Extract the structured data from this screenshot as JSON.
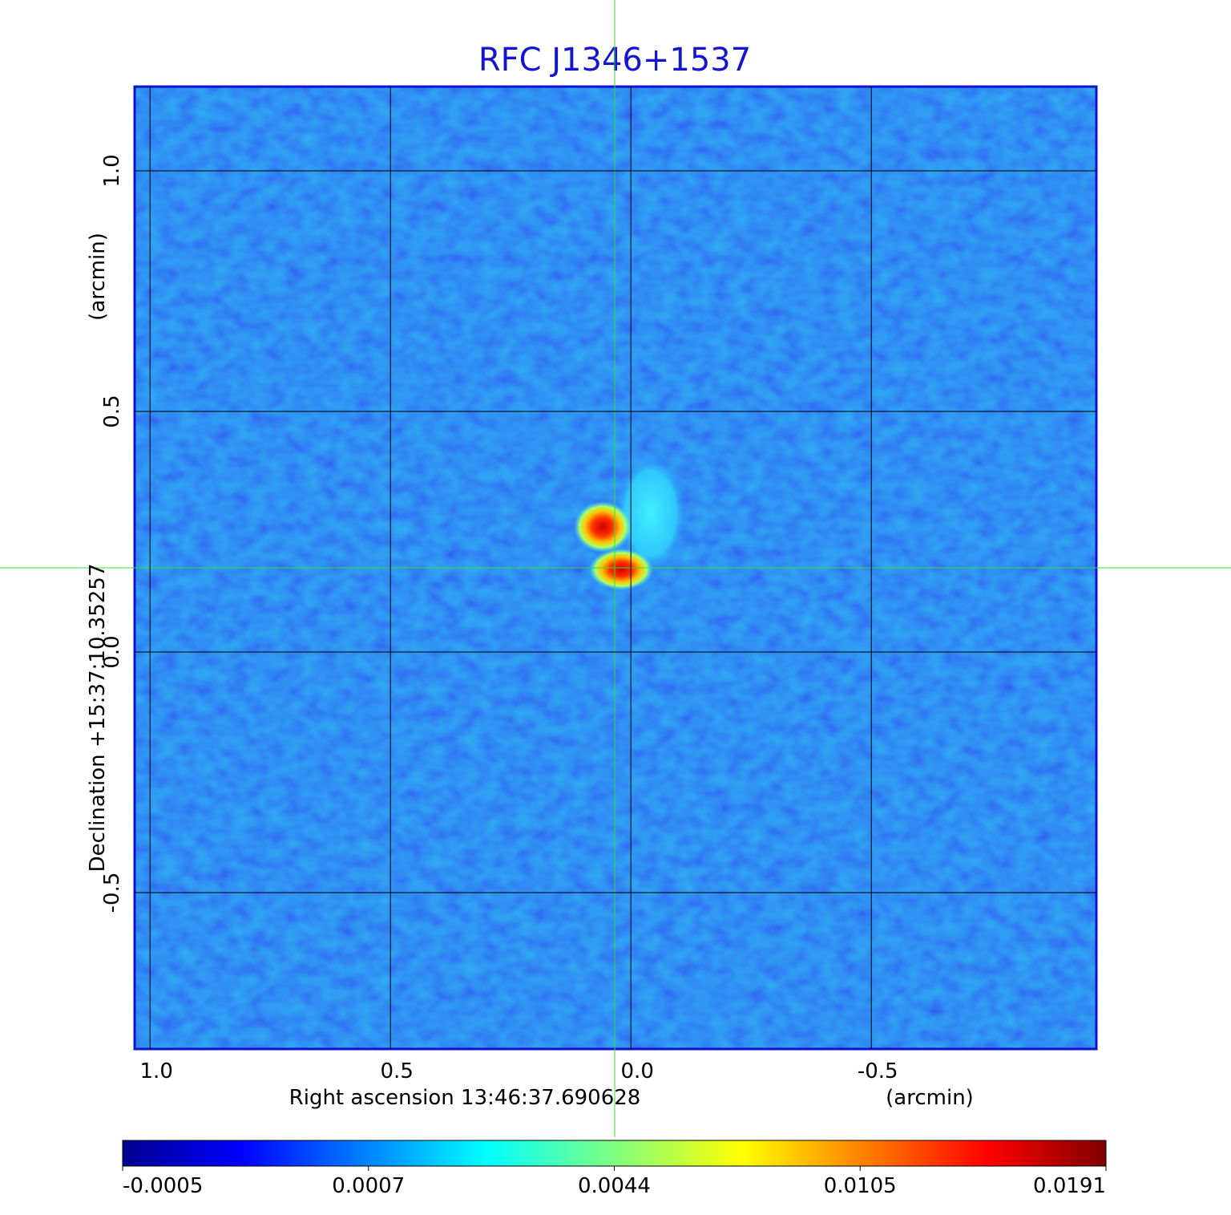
{
  "chart_data": {
    "type": "image",
    "title": "RFC J1346+1537",
    "x_label": "Right ascension  13:46:37.690628",
    "x_unit": "(arcmin)",
    "y_label": "Declination  +15:37:10.35257",
    "y_unit": "(arcmin)",
    "xlim": [
      1.032,
      -0.968
    ],
    "ylim": [
      -0.825,
      1.175
    ],
    "xticks": [
      {
        "value": 1,
        "label": "1.0"
      },
      0.5,
      {
        "value": 0,
        "label": "0.0"
      },
      -0.5
    ],
    "yticks": [
      {
        "value": 1,
        "label": "1.0"
      },
      0.5,
      {
        "value": 0,
        "label": "0.0"
      },
      -0.5
    ],
    "grid": true,
    "colorbar_ticks": [
      -0.0005,
      0.0007,
      0.0044,
      0.0105,
      0.0191
    ]
  }
}
